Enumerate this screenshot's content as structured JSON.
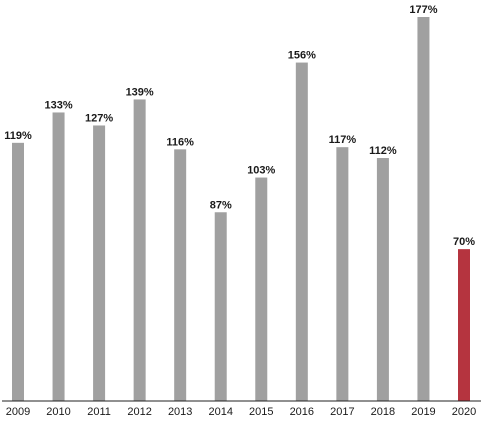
{
  "chart_data": {
    "type": "bar",
    "title": "",
    "xlabel": "",
    "ylabel": "",
    "categories": [
      "2009",
      "2010",
      "2011",
      "2012",
      "2013",
      "2014",
      "2015",
      "2016",
      "2017",
      "2018",
      "2019",
      "2020"
    ],
    "values": [
      119,
      133,
      127,
      139,
      116,
      87,
      103,
      156,
      117,
      112,
      177,
      70
    ],
    "value_labels": [
      "119%",
      "133%",
      "127%",
      "139%",
      "116%",
      "87%",
      "103%",
      "156%",
      "117%",
      "112%",
      "177%",
      "70%"
    ],
    "ylim": [
      0,
      180
    ],
    "grid": false,
    "colors": {
      "default": "#a0a0a0",
      "highlight": "#b5343f",
      "axis": "#222222"
    },
    "highlight_category": "2020"
  }
}
